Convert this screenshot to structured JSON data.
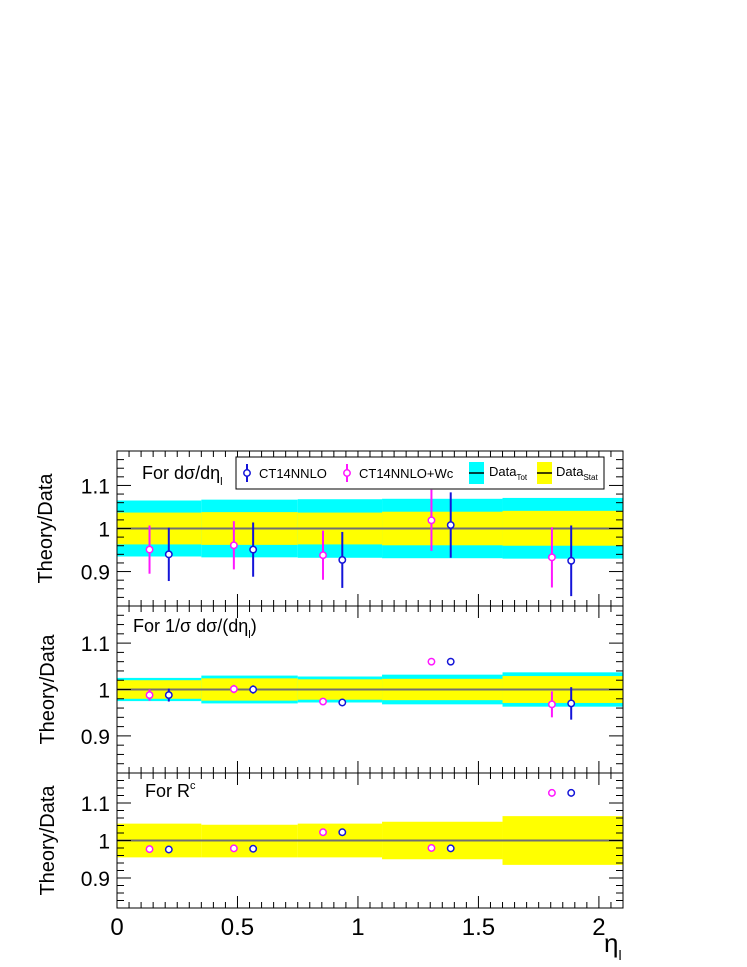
{
  "chart_data": {
    "type": "scatter",
    "x_axis": {
      "label_main": "η",
      "label_sub": "l",
      "range": [
        0,
        2.1
      ],
      "ticks": [
        0,
        0.5,
        1,
        1.5,
        2
      ],
      "tick_labels": [
        "0",
        "0.5",
        "1",
        "1.5",
        "2"
      ]
    },
    "legend": {
      "entries": [
        {
          "label": "CT14NNLO",
          "color": "#1414d8",
          "kind": "marker"
        },
        {
          "label": "CT14NNLO+Wc",
          "color": "#ff17ff",
          "kind": "marker"
        },
        {
          "label_main": "Data",
          "label_sub": "Tot",
          "color": "#00ffff",
          "kind": "band"
        },
        {
          "label_main": "Data",
          "label_sub": "Stat",
          "color": "#ffff00",
          "kind": "band"
        }
      ]
    },
    "colors": {
      "blue": "#1414d8",
      "magenta": "#ff17ff",
      "cyan": "#00ffff",
      "yellow": "#ffff00",
      "line": "#707070"
    },
    "bins": [
      0,
      0.35,
      0.75,
      1.1,
      1.6,
      2.1
    ],
    "panels": [
      {
        "id": "top",
        "ylabel": "Theory/Data",
        "title_parts": [
          "For dσ/dη",
          "l",
          ""
        ],
        "ylim": [
          0.82,
          1.18
        ],
        "yticks": [
          0.9,
          1,
          1.1
        ],
        "ytick_labels": [
          "0.9",
          "1",
          "1.1"
        ],
        "cyan_band": [
          [
            0.935,
            1.065
          ],
          [
            0.933,
            1.067
          ],
          [
            0.932,
            1.068
          ],
          [
            0.931,
            1.069
          ],
          [
            0.93,
            1.071
          ]
        ],
        "yellow_band": [
          [
            0.963,
            1.037
          ],
          [
            0.962,
            1.038
          ],
          [
            0.963,
            1.037
          ],
          [
            0.961,
            1.039
          ],
          [
            0.96,
            1.041
          ]
        ],
        "series": [
          {
            "name": "CT14NNLO+Wc",
            "color": "#ff17ff",
            "points": [
              [
                0.135,
                0.951,
                0.056
              ],
              [
                0.485,
                0.961,
                0.056
              ],
              [
                0.855,
                0.938,
                0.057
              ],
              [
                1.305,
                1.019,
                0.071
              ],
              [
                1.805,
                0.933,
                0.07
              ]
            ]
          },
          {
            "name": "CT14NNLO",
            "color": "#1414d8",
            "points": [
              [
                0.215,
                0.94,
                0.062
              ],
              [
                0.565,
                0.951,
                0.063
              ],
              [
                0.935,
                0.927,
                0.065
              ],
              [
                1.385,
                1.008,
                0.076
              ],
              [
                1.885,
                0.925,
                0.082
              ]
            ]
          }
        ]
      },
      {
        "id": "middle",
        "ylabel": "Theory/Data",
        "title_parts": [
          "For 1/σ dσ/(dη",
          "l",
          ")"
        ],
        "ylim": [
          0.82,
          1.18
        ],
        "yticks": [
          0.9,
          1,
          1.1
        ],
        "ytick_labels": [
          "0.9",
          "1",
          "1.1"
        ],
        "cyan_band": [
          [
            0.975,
            1.025
          ],
          [
            0.97,
            1.03
          ],
          [
            0.972,
            1.028
          ],
          [
            0.968,
            1.032
          ],
          [
            0.963,
            1.037
          ]
        ],
        "yellow_band": [
          [
            0.98,
            1.02
          ],
          [
            0.976,
            1.024
          ],
          [
            0.978,
            1.022
          ],
          [
            0.977,
            1.023
          ],
          [
            0.971,
            1.029
          ]
        ],
        "series": [
          {
            "name": "CT14NNLO+Wc",
            "color": "#ff17ff",
            "points": [
              [
                0.135,
                0.988,
                0.012
              ],
              [
                0.485,
                1.001,
                0.009
              ],
              [
                0.855,
                0.974,
                0.005
              ],
              [
                1.305,
                1.06,
                0.008
              ],
              [
                1.805,
                0.968,
                0.028
              ]
            ]
          },
          {
            "name": "CT14NNLO",
            "color": "#1414d8",
            "points": [
              [
                0.215,
                0.988,
                0.014
              ],
              [
                0.565,
                1.0,
                0.009
              ],
              [
                0.935,
                0.972,
                0.005
              ],
              [
                1.385,
                1.06,
                0.008
              ],
              [
                1.885,
                0.97,
                0.035
              ]
            ]
          }
        ]
      },
      {
        "id": "bottom",
        "ylabel": "Theory/Data",
        "title_parts": [
          "For R",
          "",
          "c"
        ],
        "ylim": [
          0.82,
          1.18
        ],
        "yticks": [
          0.9,
          1,
          1.1
        ],
        "ytick_labels": [
          "0.9",
          "1",
          "1.1"
        ],
        "cyan_band": [],
        "yellow_band": [
          [
            0.955,
            1.045
          ],
          [
            0.955,
            1.042
          ],
          [
            0.955,
            1.045
          ],
          [
            0.95,
            1.05
          ],
          [
            0.935,
            1.065
          ]
        ],
        "series": [
          {
            "name": "CT14NNLO+Wc",
            "color": "#ff17ff",
            "points": [
              [
                0.135,
                0.977,
                0.004
              ],
              [
                0.485,
                0.979,
                0.004
              ],
              [
                0.855,
                1.022,
                0.004
              ],
              [
                1.305,
                0.98,
                0.004
              ],
              [
                1.805,
                1.127,
                0.01
              ]
            ]
          },
          {
            "name": "CT14NNLO",
            "color": "#1414d8",
            "points": [
              [
                0.215,
                0.976,
                0.004
              ],
              [
                0.565,
                0.978,
                0.004
              ],
              [
                0.935,
                1.022,
                0.004
              ],
              [
                1.385,
                0.979,
                0.004
              ],
              [
                1.885,
                1.127,
                0.01
              ]
            ]
          }
        ]
      }
    ]
  }
}
